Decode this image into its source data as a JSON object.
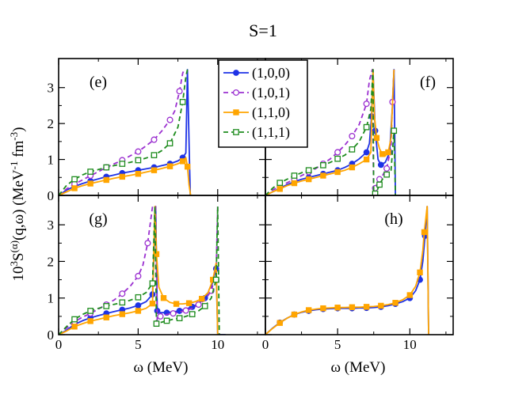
{
  "figure": {
    "title": "S=1",
    "ylabel_parts": {
      "a": "10",
      "b": "3",
      "c": "S",
      "d": "(α)",
      "e": "(q,ω) (MeV",
      "f": "-1",
      "g": " fm",
      "h": "-3",
      "i": ")"
    },
    "xlabel": "ω (MeV)"
  },
  "legend": {
    "entries": [
      {
        "label": "(1,0,0)",
        "color": "#1e32e6",
        "dash": false,
        "marker": "filled-circle"
      },
      {
        "label": "(1,0,1)",
        "color": "#9b30d0",
        "dash": true,
        "marker": "open-circle"
      },
      {
        "label": "(1,1,0)",
        "color": "#ffa500",
        "dash": false,
        "marker": "filled-square"
      },
      {
        "label": "(1,1,1)",
        "color": "#1e8c1e",
        "dash": true,
        "marker": "open-square"
      }
    ]
  },
  "chart_data": [
    {
      "panel": "(e)",
      "type": "line",
      "xlim": [
        0,
        13
      ],
      "ylim": [
        0,
        3.5
      ],
      "xticks": [
        0,
        5,
        10
      ],
      "yticks": [
        0,
        1,
        2,
        3
      ],
      "series": [
        {
          "name": "(1,0,0)",
          "x": [
            0,
            0.5,
            1,
            1.5,
            2,
            2.5,
            3,
            3.5,
            4,
            4.5,
            5,
            5.5,
            6,
            6.5,
            7,
            7.5,
            7.8,
            8,
            8.1,
            8.2,
            8.28
          ],
          "y": [
            0,
            0.15,
            0.25,
            0.33,
            0.4,
            0.46,
            0.52,
            0.57,
            0.62,
            0.66,
            0.7,
            0.74,
            0.78,
            0.83,
            0.88,
            0.96,
            1.05,
            1.18,
            3.5,
            1.5,
            0
          ]
        },
        {
          "name": "(1,0,1)",
          "x": [
            0,
            0.5,
            1,
            1.5,
            2,
            2.5,
            3,
            3.5,
            4,
            4.5,
            5,
            5.5,
            6,
            6.5,
            7,
            7.3,
            7.6,
            7.8,
            7.9
          ],
          "y": [
            0,
            0.18,
            0.32,
            0.43,
            0.55,
            0.66,
            0.78,
            0.88,
            0.98,
            1.1,
            1.22,
            1.38,
            1.55,
            1.8,
            2.1,
            2.35,
            2.9,
            3.4,
            3.5
          ]
        },
        {
          "name": "(1,1,0)",
          "x": [
            0,
            0.5,
            1,
            1.5,
            2,
            2.5,
            3,
            3.5,
            4,
            4.5,
            5,
            5.5,
            6,
            6.5,
            7,
            7.5,
            7.8,
            8,
            8.1,
            8.2,
            8.3
          ],
          "y": [
            0,
            0.1,
            0.2,
            0.27,
            0.33,
            0.38,
            0.43,
            0.48,
            0.52,
            0.56,
            0.6,
            0.65,
            0.7,
            0.75,
            0.81,
            0.88,
            0.95,
            1.05,
            0.8,
            0.3,
            0
          ]
        },
        {
          "name": "(1,1,1)",
          "x": [
            0,
            0.5,
            1,
            1.5,
            2,
            2.5,
            3,
            3.5,
            4,
            4.5,
            5,
            5.5,
            6,
            6.5,
            7,
            7.5,
            7.8,
            8,
            8.1
          ],
          "y": [
            0,
            0.28,
            0.45,
            0.57,
            0.66,
            0.72,
            0.78,
            0.83,
            0.88,
            0.92,
            0.98,
            1.04,
            1.12,
            1.25,
            1.45,
            1.9,
            2.6,
            3.3,
            3.5
          ]
        }
      ]
    },
    {
      "panel": "(f)",
      "type": "line",
      "xlim": [
        0,
        13
      ],
      "ylim": [
        0,
        3.5
      ],
      "xticks": [
        0,
        5,
        10
      ],
      "yticks": [
        0,
        1,
        2,
        3
      ],
      "series": [
        {
          "name": "(1,0,0)",
          "x": [
            0,
            0.5,
            1,
            1.5,
            2,
            2.5,
            3,
            3.5,
            4,
            4.5,
            5,
            5.5,
            6,
            6.5,
            7,
            7.2,
            7.35,
            7.45,
            7.6,
            7.8,
            8,
            8.3,
            8.6,
            8.8,
            8.9,
            9
          ],
          "y": [
            0,
            0.1,
            0.2,
            0.3,
            0.38,
            0.45,
            0.5,
            0.55,
            0.6,
            0.65,
            0.7,
            0.78,
            0.88,
            1.02,
            1.2,
            1.45,
            2.2,
            3.5,
            1.8,
            1.0,
            0.85,
            0.92,
            1.2,
            2.5,
            3.5,
            0
          ]
        },
        {
          "name": "(1,0,1)",
          "x": [
            0,
            0.5,
            1,
            1.5,
            2,
            2.5,
            3,
            3.5,
            4,
            4.5,
            5,
            5.5,
            6,
            6.5,
            7,
            7.2,
            7.4,
            7.5,
            7.6,
            7.7,
            7.9,
            8.1,
            8.4,
            8.7,
            8.8,
            8.9
          ],
          "y": [
            0,
            0.15,
            0.25,
            0.35,
            0.45,
            0.55,
            0.65,
            0.75,
            0.88,
            1.02,
            1.2,
            1.4,
            1.65,
            1.98,
            2.55,
            3.2,
            3.5,
            0,
            0.2,
            0.32,
            0.45,
            0.55,
            0.75,
            1.35,
            2.6,
            3.5
          ]
        },
        {
          "name": "(1,1,0)",
          "x": [
            0,
            0.5,
            1,
            1.5,
            2,
            2.5,
            3,
            3.5,
            4,
            4.5,
            5,
            5.5,
            6,
            6.5,
            7,
            7.3,
            7.45,
            7.55,
            7.7,
            7.9,
            8.1,
            8.3,
            8.5,
            8.7,
            8.9
          ],
          "y": [
            0,
            0.1,
            0.18,
            0.27,
            0.34,
            0.4,
            0.45,
            0.5,
            0.55,
            0.6,
            0.65,
            0.7,
            0.78,
            0.88,
            1.0,
            1.2,
            3.5,
            2.2,
            1.6,
            1.3,
            1.15,
            1.1,
            1.2,
            1.6,
            3.5
          ]
        },
        {
          "name": "(1,1,1)",
          "x": [
            0,
            0.5,
            1,
            1.5,
            2,
            2.5,
            3,
            3.5,
            4,
            4.5,
            5,
            5.5,
            6,
            6.5,
            7,
            7.3,
            7.45,
            7.5,
            7.6,
            7.75,
            7.9,
            8.1,
            8.4,
            8.7,
            8.9,
            9
          ],
          "y": [
            0,
            0.2,
            0.35,
            0.45,
            0.55,
            0.63,
            0.7,
            0.77,
            0.84,
            0.92,
            1.02,
            1.12,
            1.28,
            1.5,
            1.9,
            2.4,
            3.5,
            0,
            0.05,
            0.15,
            0.3,
            0.45,
            0.58,
            0.7,
            1.8,
            0
          ]
        }
      ]
    },
    {
      "panel": "(g)",
      "type": "line",
      "xlim": [
        0,
        13
      ],
      "ylim": [
        0,
        3.5
      ],
      "xticks": [
        0,
        5,
        10
      ],
      "yticks": [
        0,
        1,
        2,
        3
      ],
      "series": [
        {
          "name": "(1,0,0)",
          "x": [
            0,
            0.5,
            1,
            1.5,
            2,
            2.5,
            3,
            3.5,
            4,
            4.5,
            5,
            5.5,
            5.9,
            6.1,
            6.2,
            6.4,
            6.8,
            7.2,
            7.6,
            8,
            8.4,
            8.8,
            9.2,
            9.6,
            9.9,
            10,
            10.2,
            10.5
          ],
          "y": [
            0,
            0.12,
            0.28,
            0.38,
            0.46,
            0.52,
            0.58,
            0.63,
            0.68,
            0.73,
            0.8,
            0.9,
            1.1,
            3.5,
            0.65,
            0.6,
            0.6,
            0.62,
            0.65,
            0.7,
            0.76,
            0.85,
            1.0,
            1.3,
            1.8,
            0,
            0,
            0
          ]
        },
        {
          "name": "(1,0,1)",
          "x": [
            0,
            0.5,
            1,
            1.5,
            2,
            2.5,
            3,
            3.5,
            4,
            4.5,
            5,
            5.3,
            5.6,
            5.9,
            6.1,
            6.2,
            6.4,
            6.8,
            7.2,
            7.6,
            8,
            8.4,
            8.8,
            9.2,
            9.6,
            9.9,
            10
          ],
          "y": [
            0,
            0.18,
            0.35,
            0.48,
            0.58,
            0.7,
            0.82,
            0.95,
            1.12,
            1.32,
            1.6,
            1.9,
            2.5,
            3.5,
            3.5,
            0.35,
            0.5,
            0.55,
            0.58,
            0.62,
            0.66,
            0.72,
            0.82,
            0.95,
            1.2,
            1.7,
            3.5
          ]
        },
        {
          "name": "(1,1,0)",
          "x": [
            0,
            0.5,
            1,
            1.5,
            2,
            2.5,
            3,
            3.5,
            4,
            4.5,
            5,
            5.5,
            5.9,
            6.05,
            6.15,
            6.3,
            6.6,
            7,
            7.4,
            7.8,
            8.2,
            8.6,
            9,
            9.4,
            9.7,
            9.9,
            10
          ],
          "y": [
            0,
            0.1,
            0.22,
            0.3,
            0.37,
            0.42,
            0.47,
            0.52,
            0.56,
            0.6,
            0.65,
            0.72,
            0.85,
            3.5,
            2.2,
            1.3,
            1.0,
            0.88,
            0.84,
            0.84,
            0.86,
            0.9,
            0.98,
            1.15,
            1.5,
            1.95,
            0
          ]
        },
        {
          "name": "(1,1,1)",
          "x": [
            0,
            0.5,
            1,
            1.5,
            2,
            2.5,
            3,
            3.5,
            4,
            4.5,
            5,
            5.5,
            5.9,
            6.05,
            6.15,
            6.4,
            6.8,
            7.2,
            7.6,
            8,
            8.4,
            8.8,
            9.2,
            9.6,
            9.9,
            10,
            10.1
          ],
          "y": [
            0,
            0.22,
            0.42,
            0.55,
            0.65,
            0.72,
            0.78,
            0.83,
            0.88,
            0.94,
            1.02,
            1.15,
            1.4,
            3.5,
            0.3,
            0.33,
            0.38,
            0.42,
            0.45,
            0.5,
            0.56,
            0.65,
            0.78,
            1.0,
            1.5,
            3.5,
            0
          ]
        }
      ]
    },
    {
      "panel": "(h)",
      "type": "line",
      "xlim": [
        0,
        13
      ],
      "ylim": [
        0,
        3.5
      ],
      "xticks": [
        0,
        5,
        10
      ],
      "yticks": [
        0,
        1,
        2,
        3
      ],
      "series": [
        {
          "name": "(1,0,0)",
          "x": [
            0,
            0.5,
            1,
            1.5,
            2,
            2.5,
            3,
            3.5,
            4,
            4.5,
            5,
            5.5,
            6,
            6.5,
            7,
            7.5,
            8,
            8.5,
            9,
            9.5,
            10,
            10.4,
            10.7,
            10.9,
            11.05,
            11.2,
            11.3
          ],
          "y": [
            0,
            0.18,
            0.33,
            0.45,
            0.55,
            0.61,
            0.65,
            0.68,
            0.7,
            0.71,
            0.72,
            0.72,
            0.72,
            0.73,
            0.73,
            0.74,
            0.76,
            0.79,
            0.84,
            0.9,
            1.0,
            1.2,
            1.5,
            2.0,
            2.7,
            3.5,
            0
          ]
        },
        {
          "name": "(1,1,0)",
          "x": [
            0,
            0.5,
            1,
            1.5,
            2,
            2.5,
            3,
            3.5,
            4,
            4.5,
            5,
            5.5,
            6,
            6.5,
            7,
            7.5,
            8,
            8.5,
            9,
            9.5,
            10,
            10.4,
            10.7,
            10.9,
            11,
            11.2,
            11.3
          ],
          "y": [
            0,
            0.17,
            0.32,
            0.45,
            0.55,
            0.62,
            0.67,
            0.7,
            0.72,
            0.73,
            0.74,
            0.74,
            0.75,
            0.75,
            0.76,
            0.77,
            0.79,
            0.82,
            0.87,
            0.95,
            1.08,
            1.32,
            1.7,
            2.3,
            2.8,
            3.5,
            0
          ]
        }
      ]
    }
  ]
}
